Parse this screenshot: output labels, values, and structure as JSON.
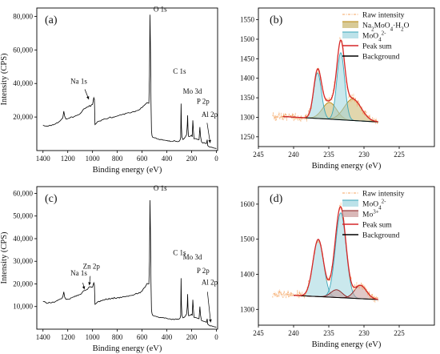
{
  "chart_data": [
    {
      "panel": "(a)",
      "type": "line",
      "xlabel": "Binding energy (eV)",
      "ylabel": "Intensity (CPS)",
      "xlim": [
        1450,
        -10
      ],
      "ylim": [
        0,
        85000
      ],
      "x_ticks": [
        1400,
        1200,
        1000,
        800,
        600,
        400,
        200,
        0
      ],
      "y_ticks": [
        20000,
        40000,
        60000,
        80000
      ],
      "y_tick_labels": [
        "20,000",
        "40,000",
        "60,000",
        "80,000"
      ],
      "annotations": [
        {
          "text": "Na 1s",
          "x": 1072,
          "y": 39000
        },
        {
          "text": "O 1s",
          "x": 531,
          "y": 82000
        },
        {
          "text": "C 1s",
          "x": 285,
          "y": 45000
        },
        {
          "text": "Mo 3d",
          "x": 232,
          "y": 33000
        },
        {
          "text": "P 2p",
          "x": 133,
          "y": 27000
        },
        {
          "text": "Al 2p",
          "x": 74,
          "y": 19000
        }
      ],
      "series": [
        {
          "x": [
            1400,
            1370,
            1340,
            1300,
            1260,
            1240,
            1232,
            1225,
            1215,
            1200,
            1150,
            1100,
            1072,
            1050,
            1000,
            990,
            985,
            980,
            970,
            960,
            950,
            900,
            850,
            800,
            760,
            720,
            680,
            640,
            600,
            575,
            560,
            545,
            540,
            536,
            532,
            528,
            524,
            520,
            515,
            510,
            500,
            480,
            450,
            420,
            400,
            380,
            350,
            320,
            300,
            292,
            288,
            285,
            282,
            278,
            270,
            260,
            250,
            240,
            235,
            232,
            229,
            225,
            220,
            210,
            200,
            195,
            190,
            185,
            180,
            170,
            160,
            150,
            140,
            133,
            128,
            120,
            100,
            80,
            74,
            70,
            60,
            40,
            30,
            20,
            10,
            0
          ],
          "y": [
            15200,
            14600,
            15000,
            15800,
            17800,
            19500,
            23500,
            20500,
            18800,
            19000,
            20200,
            22000,
            24800,
            25600,
            27500,
            31500,
            30500,
            15500,
            16200,
            17200,
            17500,
            18800,
            19600,
            20600,
            21500,
            22400,
            23000,
            23800,
            25600,
            27500,
            28600,
            28200,
            45000,
            81000,
            60000,
            30000,
            12000,
            9000,
            8000,
            7800,
            7600,
            7000,
            6600,
            6200,
            6000,
            5800,
            5500,
            5400,
            5600,
            6500,
            8000,
            28000,
            14000,
            8000,
            6600,
            7200,
            8200,
            9600,
            15000,
            21000,
            13000,
            8500,
            8400,
            8600,
            9200,
            8200,
            18000,
            11500,
            7000,
            7200,
            6900,
            6600,
            6500,
            14000,
            8600,
            5200,
            4800,
            4200,
            6500,
            3000,
            2300,
            2000,
            1800,
            1500,
            1400,
            1200
          ]
        }
      ]
    },
    {
      "panel": "(b)",
      "type": "line",
      "xlabel": "Binding energy (eV)",
      "xlim": [
        245,
        220
      ],
      "ylim": [
        1225,
        1580
      ],
      "x_ticks": [
        245,
        240,
        235,
        230,
        225
      ],
      "y_ticks": [
        1250,
        1300,
        1350,
        1400,
        1450,
        1500,
        1550
      ],
      "legend_position": "top-right",
      "series": [
        {
          "name": "Raw intensity",
          "style": "dash-dot",
          "color": "#f4a460",
          "x": [],
          "y": []
        },
        {
          "name": "Na2MoO4·H2O",
          "name_html": "Na<tspan baseline-shift='sub' font-size='7'>2</tspan>MoO<tspan baseline-shift='sub' font-size='7'>4</tspan>·H<tspan baseline-shift='sub' font-size='7'>2</tspan>O",
          "color": "#b8860b",
          "fill": "#c8b46a",
          "baseline_x": [
            241.5,
            228.0
          ],
          "baseline_y": [
            1302,
            1288
          ],
          "peaks": [
            {
              "center": 234.9,
              "height": 43,
              "width": 1.0
            },
            {
              "center": 231.6,
              "height": 55,
              "width": 1.2
            }
          ]
        },
        {
          "name": "MoO4 2-",
          "name_html": "MoO<tspan baseline-shift='sub' font-size='7'>4</tspan><tspan baseline-shift='super' font-size='7'>2-</tspan>",
          "color": "#3aa6b9",
          "fill": "#9fd5df",
          "peaks": [
            {
              "center": 236.6,
              "height": 117,
              "width": 0.55
            },
            {
              "center": 233.3,
              "height": 172,
              "width": 0.55
            }
          ]
        },
        {
          "name": "Peak sum",
          "color": "#d62728"
        },
        {
          "name": "Background",
          "color": "#000000"
        }
      ]
    },
    {
      "panel": "(c)",
      "type": "line",
      "xlabel": "Binding energy (eV)",
      "ylabel": "Intensity (CPS)",
      "xlim": [
        1450,
        -10
      ],
      "ylim": [
        0,
        63000
      ],
      "x_ticks": [
        1400,
        1200,
        1000,
        800,
        600,
        400,
        200,
        0
      ],
      "y_ticks": [
        10000,
        20000,
        30000,
        40000,
        50000,
        60000
      ],
      "y_tick_labels": [
        "10,000",
        "20,000",
        "30,000",
        "40,000",
        "50,000",
        "60,000"
      ],
      "annotations": [
        {
          "text": "O 1s",
          "x": 531,
          "y": 60500
        },
        {
          "text": "Na 1s",
          "x": 1072,
          "y": 23000
        },
        {
          "text": "Zn 2p",
          "x": 1022,
          "y": 26000
        },
        {
          "text": "C 1s",
          "x": 285,
          "y": 32000
        },
        {
          "text": "Mo 3d",
          "x": 232,
          "y": 30000
        },
        {
          "text": "P 2p",
          "x": 133,
          "y": 24000
        },
        {
          "text": "Al 2p",
          "x": 74,
          "y": 19000
        }
      ],
      "series": [
        {
          "x": [
            1400,
            1370,
            1340,
            1300,
            1260,
            1240,
            1232,
            1225,
            1215,
            1200,
            1150,
            1100,
            1072,
            1050,
            1022,
            1000,
            990,
            985,
            980,
            970,
            960,
            950,
            900,
            850,
            800,
            760,
            720,
            680,
            640,
            600,
            575,
            560,
            545,
            540,
            536,
            532,
            528,
            524,
            520,
            515,
            510,
            500,
            480,
            450,
            420,
            400,
            380,
            350,
            320,
            300,
            292,
            288,
            285,
            282,
            278,
            270,
            260,
            250,
            240,
            235,
            232,
            229,
            225,
            220,
            210,
            200,
            195,
            190,
            185,
            180,
            170,
            160,
            150,
            140,
            133,
            128,
            120,
            100,
            80,
            74,
            70,
            60,
            40,
            30,
            20,
            10,
            0
          ],
          "y": [
            12300,
            11400,
            11600,
            12200,
            13400,
            14300,
            16500,
            14200,
            13200,
            13200,
            14200,
            15300,
            17000,
            17400,
            18800,
            18600,
            20500,
            19600,
            11000,
            11400,
            12000,
            12300,
            13000,
            13500,
            13900,
            14200,
            14600,
            15000,
            15600,
            16800,
            18600,
            20200,
            20000,
            30000,
            57000,
            42000,
            21000,
            8500,
            7000,
            6200,
            6000,
            5800,
            5500,
            5200,
            4900,
            4800,
            4600,
            4500,
            4400,
            4500,
            5000,
            6300,
            22500,
            11000,
            6000,
            5000,
            5200,
            5800,
            6800,
            10000,
            15500,
            9500,
            6000,
            6000,
            6200,
            6600,
            6000,
            13000,
            8400,
            5200,
            5200,
            5000,
            4800,
            4600,
            10000,
            6200,
            3800,
            3400,
            3000,
            4600,
            2300,
            1800,
            1500,
            1300,
            1100,
            1000,
            900
          ]
        }
      ]
    },
    {
      "panel": "(d)",
      "type": "line",
      "xlabel": "Binding energy (eV)",
      "xlim": [
        245,
        220
      ],
      "ylim": [
        1255,
        1650
      ],
      "x_ticks": [
        245,
        240,
        235,
        230,
        225
      ],
      "y_ticks": [
        1300,
        1400,
        1500,
        1600
      ],
      "legend_position": "top-right",
      "series": [
        {
          "name": "Raw intensity",
          "style": "dash-dot",
          "color": "#f4a460",
          "x": [],
          "y": []
        },
        {
          "name": "MoO4 2-",
          "name_html": "MoO<tspan baseline-shift='sub' font-size='7'>4</tspan><tspan baseline-shift='super' font-size='7'>2-</tspan>",
          "color": "#3aa6b9",
          "fill": "#9fd5df",
          "baseline_x": [
            240.0,
            228.0
          ],
          "baseline_y": [
            1340,
            1328
          ],
          "peaks": [
            {
              "center": 236.5,
              "height": 163,
              "width": 0.75
            },
            {
              "center": 233.3,
              "height": 242,
              "width": 0.75
            }
          ]
        },
        {
          "name": "Mo 3+",
          "name_html": "Mo<tspan baseline-shift='super' font-size='7'>3+</tspan>",
          "color": "#8b1a1a",
          "fill": "#c99a9a",
          "peaks": [
            {
              "center": 233.9,
              "height": 22,
              "width": 0.8
            },
            {
              "center": 230.5,
              "height": 38,
              "width": 0.85
            }
          ]
        },
        {
          "name": "Peak sum",
          "color": "#d62728"
        },
        {
          "name": "Background",
          "color": "#000000"
        }
      ]
    }
  ],
  "panels": {
    "a": {
      "label": "(a)",
      "xlabel": "Binding energy (eV)",
      "ylabel": "Intensity (CPS)"
    },
    "b": {
      "label": "(b)",
      "xlabel": "Binding energy (eV)"
    },
    "c": {
      "label": "(c)",
      "xlabel": "Binding energy (eV)",
      "ylabel": "Intensity (CPS)"
    },
    "d": {
      "label": "(d)",
      "xlabel": "Binding energy (eV)"
    }
  },
  "legend_b": [
    "Raw intensity",
    "Na2MoO4·H2O",
    "MoO4 2-",
    "Peak sum",
    "Background"
  ],
  "legend_d": [
    "Raw intensity",
    "MoO4 2-",
    "Mo 3+",
    "Peak sum",
    "Background"
  ],
  "colors": {
    "raw": "#f4a460",
    "peak_sum": "#d62728",
    "background": "#000000",
    "survey": "#000000"
  }
}
